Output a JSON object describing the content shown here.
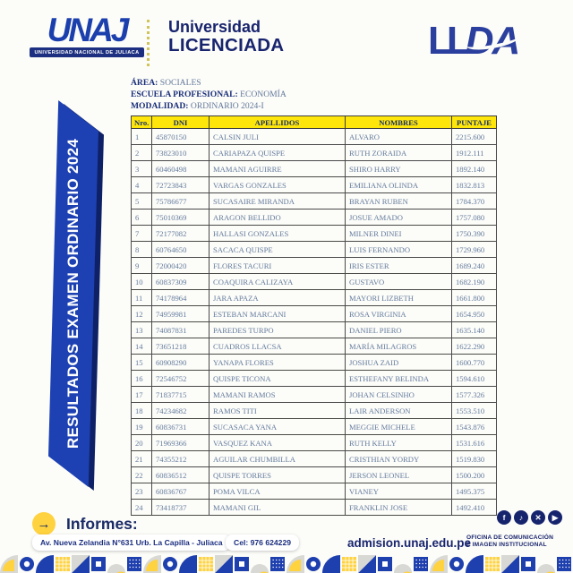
{
  "header": {
    "unaj_logo": {
      "acronym": "UNAJ",
      "caption": "UNIVERSIDAD NACIONAL DE JULIACA"
    },
    "licensed": {
      "line1": "Universidad",
      "line2": "LICENCIADA"
    },
    "lda_logo": {
      "letters": "LL",
      "text": "DA"
    }
  },
  "info": {
    "area_label": "ÁREA:",
    "area_value": "SOCIALES",
    "school_label": "ESCUELA PROFESIONAL:",
    "school_value": "ECONOMÍA",
    "modality_label": "MODALIDAD:",
    "modality_value": "ORDINARIO 2024-I"
  },
  "banner": {
    "text": "RESULTADOS EXAMEN ORDINARIO 2024"
  },
  "table": {
    "columns": [
      "Nro.",
      "DNI",
      "APELLIDOS",
      "NOMBRES",
      "PUNTAJE"
    ],
    "rows": [
      [
        "1",
        "45870150",
        "CALSIN JULI",
        "ALVARO",
        "2215.600"
      ],
      [
        "2",
        "73823010",
        "CARIAPAZA QUISPE",
        "RUTH ZORAIDA",
        "1912.111"
      ],
      [
        "3",
        "60460498",
        "MAMANI AGUIRRE",
        "SHIRO HARRY",
        "1892.140"
      ],
      [
        "4",
        "72723843",
        "VARGAS GONZALES",
        "EMILIANA OLINDA",
        "1832.813"
      ],
      [
        "5",
        "75786677",
        "SUCASAIRE MIRANDA",
        "BRAYAN RUBEN",
        "1784.370"
      ],
      [
        "6",
        "75010369",
        "ARAGON BELLIDO",
        "JOSUE AMADO",
        "1757.080"
      ],
      [
        "7",
        "72177082",
        "HALLASI GONZALES",
        "MILNER DINEI",
        "1750.390"
      ],
      [
        "8",
        "60764650",
        "SACACA QUISPE",
        "LUIS FERNANDO",
        "1729.960"
      ],
      [
        "9",
        "72000420",
        "FLORES TACURI",
        "IRIS ESTER",
        "1689.240"
      ],
      [
        "10",
        "60837309",
        "COAQUIRA CALIZAYA",
        "GUSTAVO",
        "1682.190"
      ],
      [
        "11",
        "74178964",
        "JARA APAZA",
        "MAYORI LIZBETH",
        "1661.800"
      ],
      [
        "12",
        "74959981",
        "ESTEBAN MARCANI",
        "ROSA VIRGINIA",
        "1654.950"
      ],
      [
        "13",
        "74087831",
        "PAREDES TURPO",
        "DANIEL PIERO",
        "1635.140"
      ],
      [
        "14",
        "73651218",
        "CUADROS LLACSA",
        "MARÍA MILAGROS",
        "1622.290"
      ],
      [
        "15",
        "60908290",
        "YANAPA FLORES",
        "JOSHUA ZAID",
        "1600.770"
      ],
      [
        "16",
        "72546752",
        "QUISPE TICONA",
        "ESTHEFANY BELINDA",
        "1594.610"
      ],
      [
        "17",
        "71837715",
        "MAMANI RAMOS",
        "JOHAN CELSINHO",
        "1577.326"
      ],
      [
        "18",
        "74234682",
        "RAMOS TITI",
        "LAIR ANDERSON",
        "1553.510"
      ],
      [
        "19",
        "60836731",
        "SUCASACA YANA",
        "MEGGIE MICHELE",
        "1543.876"
      ],
      [
        "20",
        "71969366",
        "VASQUEZ KANA",
        "RUTH KELLY",
        "1531.616"
      ],
      [
        "21",
        "74355212",
        "AGUILAR CHUMBILLA",
        "CRISTHIAN YORDY",
        "1519.830"
      ],
      [
        "22",
        "60836512",
        "QUISPE TORRES",
        "JERSON LEONEL",
        "1500.200"
      ],
      [
        "23",
        "60836767",
        "POMA VILCA",
        "VIANEY",
        "1495.375"
      ],
      [
        "24",
        "73418737",
        "MAMANI GIL",
        "FRANKLIN JOSE",
        "1492.410"
      ]
    ]
  },
  "footer": {
    "informes_label": "Informes:",
    "address": "Av. Nueva Zelandia N°631 Urb. La Capilla - Juliaca",
    "phone": "Cel: 976 624229",
    "website": "admision.unaj.edu.pe",
    "office_line1": "OFICINA DE COMUNICACIÓN",
    "office_line2": "E IMAGEN INSTITUCIONAL"
  },
  "icons": {
    "arrow": "→",
    "facebook": "f",
    "tiktok": "♪",
    "x": "✕",
    "youtube": "▶"
  },
  "colors": {
    "brand_blue": "#1d41b2",
    "navy": "#18246e",
    "header_yellow": "#ffe60a",
    "accent_yellow": "#ffd23f",
    "table_text": "#647c9e"
  }
}
